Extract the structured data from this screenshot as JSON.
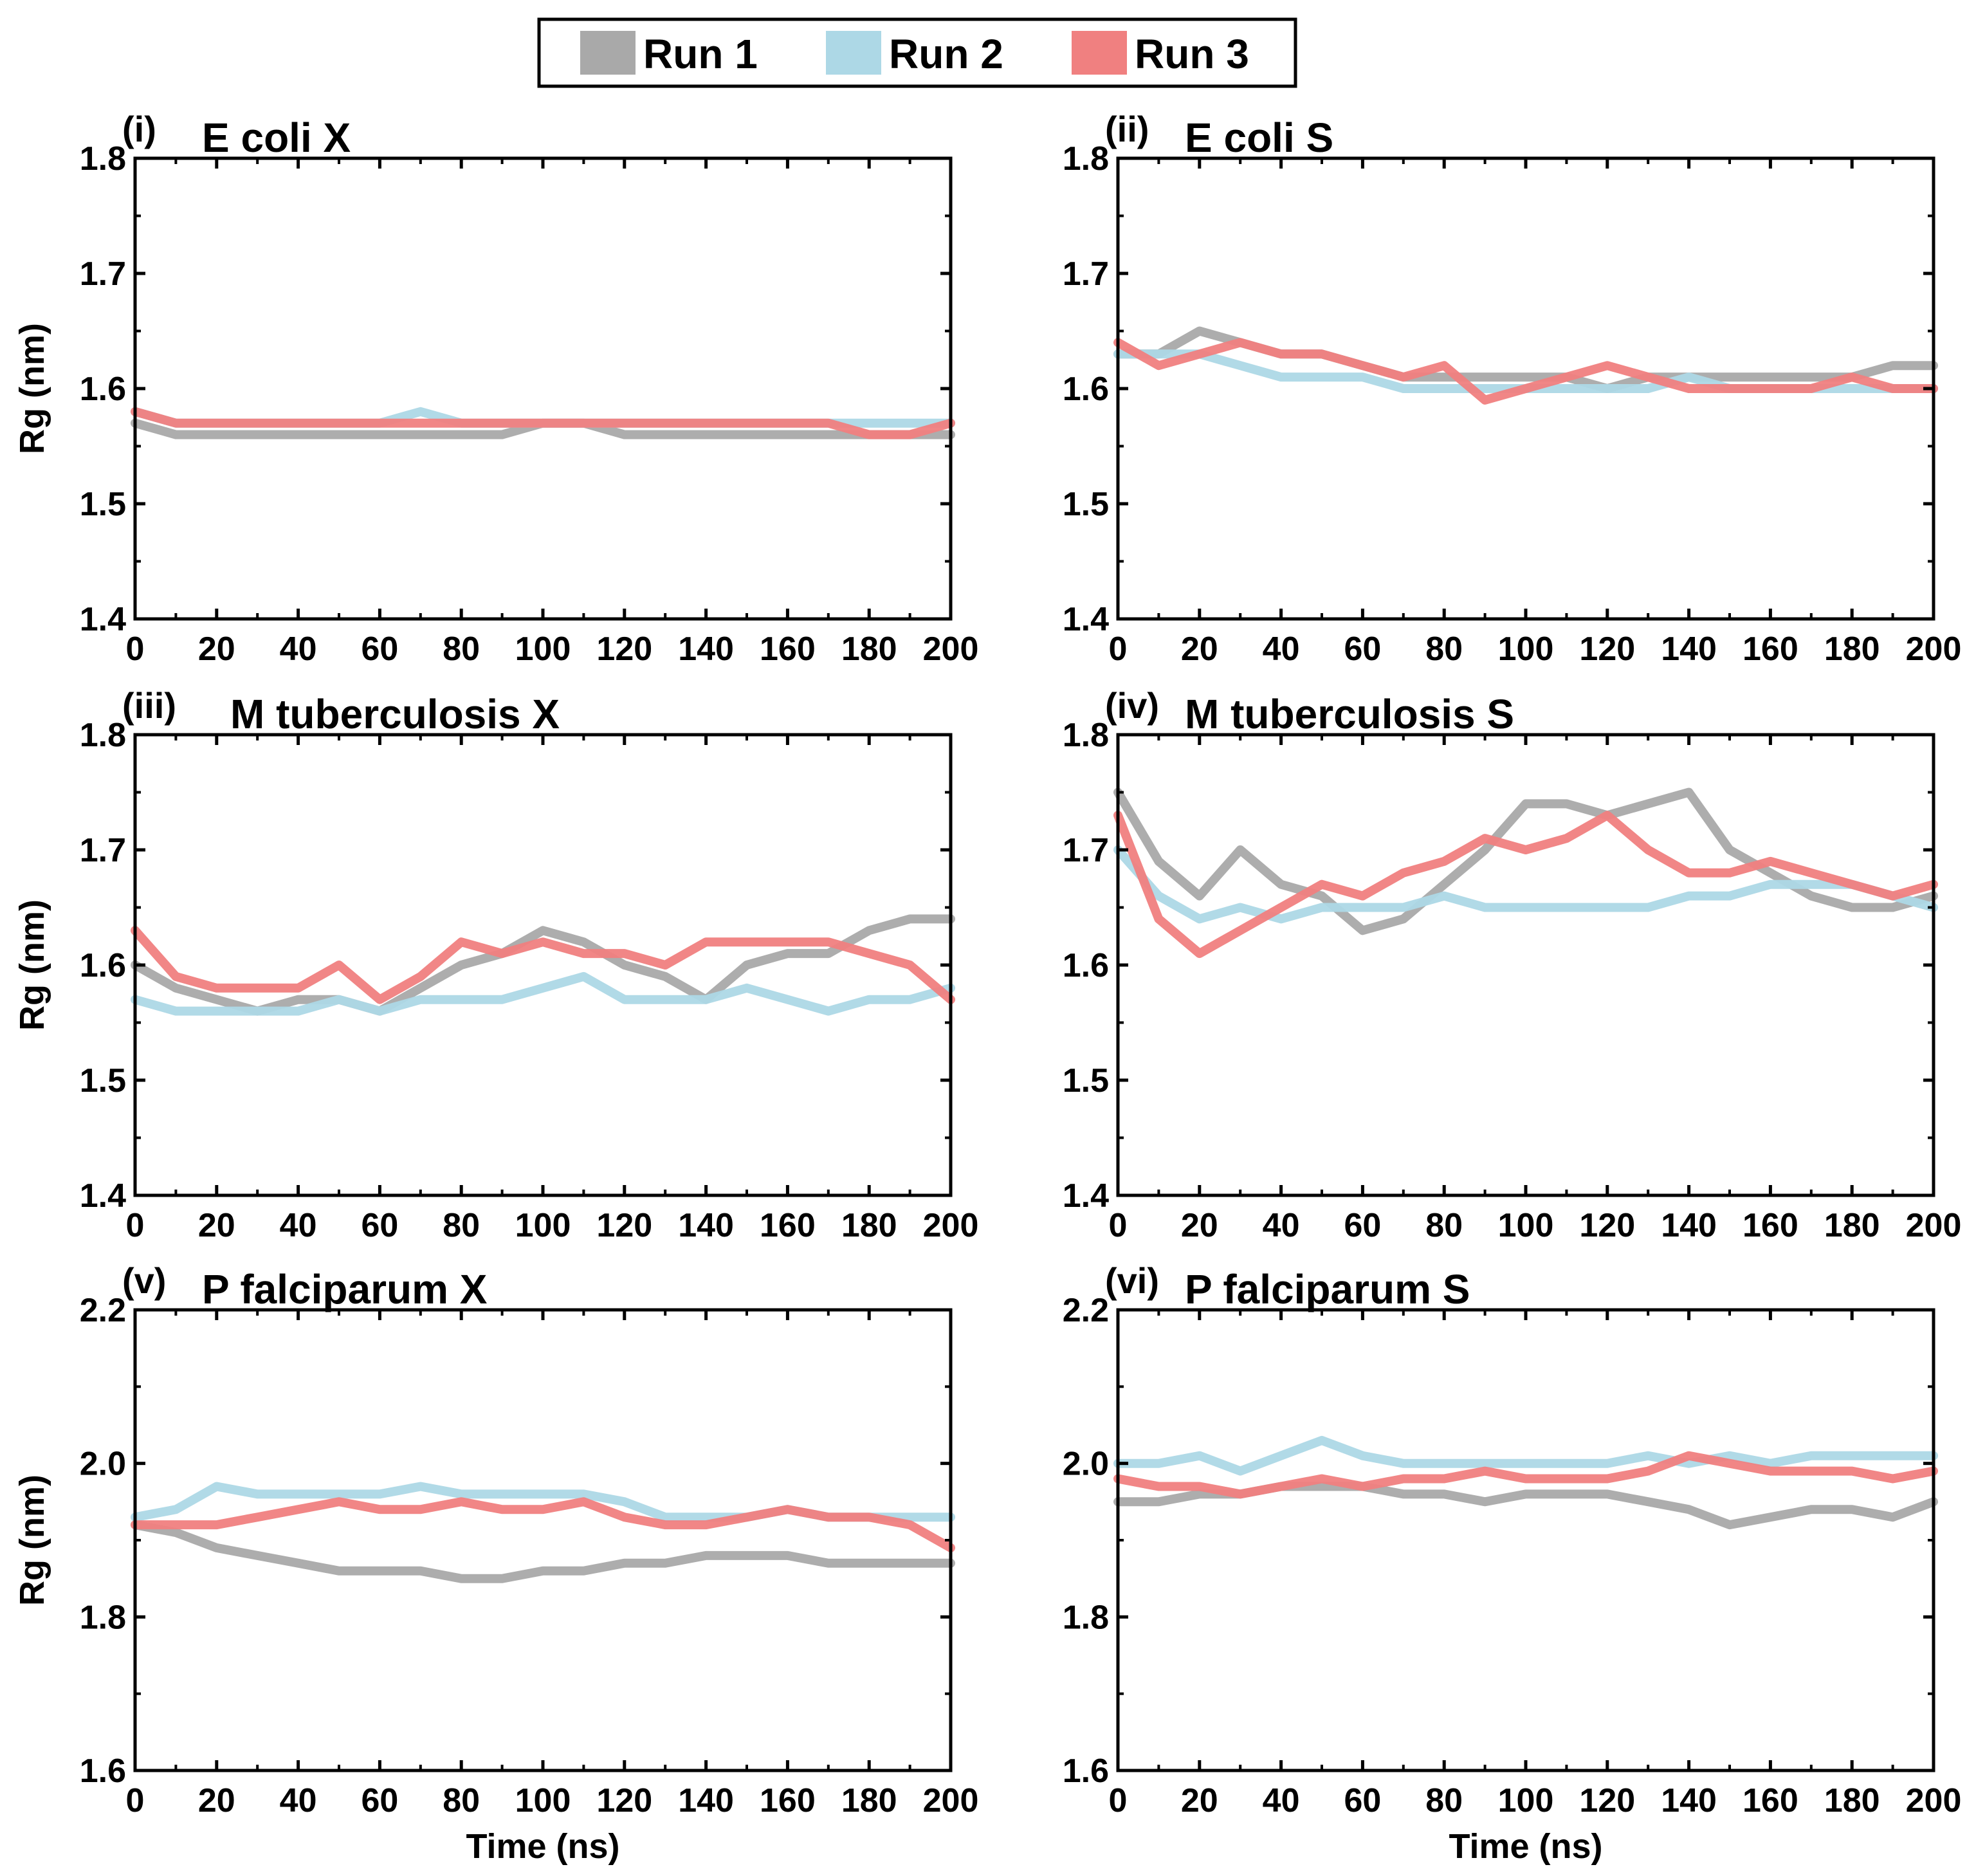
{
  "legend": [
    {
      "name": "Run 1",
      "color": "#a9a9a9"
    },
    {
      "name": "Run 2",
      "color": "#add8e6"
    },
    {
      "name": "Run 3",
      "color": "#f08080"
    }
  ],
  "chart_data": [
    {
      "type": "line",
      "panel_label": "(i)",
      "title": "E coli X",
      "xlabel": "",
      "ylabel": "Rg (nm)",
      "xlim": [
        0,
        200
      ],
      "ylim": [
        1.4,
        1.8
      ],
      "xticks": [
        0,
        20,
        40,
        60,
        80,
        100,
        120,
        140,
        160,
        180,
        200
      ],
      "yticks": [
        1.4,
        1.5,
        1.6,
        1.7,
        1.8
      ],
      "yticks_label": [
        "1.4",
        "1.5",
        "1.6",
        "1.7",
        "1.8"
      ],
      "x": [
        0,
        10,
        20,
        30,
        40,
        50,
        60,
        70,
        80,
        90,
        100,
        110,
        120,
        130,
        140,
        150,
        160,
        170,
        180,
        190,
        200
      ],
      "series": [
        {
          "name": "Run 1",
          "values": [
            1.57,
            1.56,
            1.56,
            1.56,
            1.56,
            1.56,
            1.56,
            1.56,
            1.56,
            1.56,
            1.57,
            1.57,
            1.56,
            1.56,
            1.56,
            1.56,
            1.56,
            1.56,
            1.56,
            1.56,
            1.56
          ]
        },
        {
          "name": "Run 2",
          "values": [
            1.58,
            1.57,
            1.57,
            1.57,
            1.57,
            1.57,
            1.57,
            1.58,
            1.57,
            1.57,
            1.57,
            1.57,
            1.57,
            1.57,
            1.57,
            1.57,
            1.57,
            1.57,
            1.57,
            1.57,
            1.57
          ]
        },
        {
          "name": "Run 3",
          "values": [
            1.58,
            1.57,
            1.57,
            1.57,
            1.57,
            1.57,
            1.57,
            1.57,
            1.57,
            1.57,
            1.57,
            1.57,
            1.57,
            1.57,
            1.57,
            1.57,
            1.57,
            1.57,
            1.56,
            1.56,
            1.57
          ]
        }
      ]
    },
    {
      "type": "line",
      "panel_label": "(ii)",
      "title": "E coli S",
      "xlabel": "",
      "ylabel": "",
      "xlim": [
        0,
        200
      ],
      "ylim": [
        1.4,
        1.8
      ],
      "xticks": [
        0,
        20,
        40,
        60,
        80,
        100,
        120,
        140,
        160,
        180,
        200
      ],
      "yticks": [
        1.4,
        1.5,
        1.6,
        1.7,
        1.8
      ],
      "yticks_label": [
        "1.4",
        "1.5",
        "1.6",
        "1.7",
        "1.8"
      ],
      "x": [
        0,
        10,
        20,
        30,
        40,
        50,
        60,
        70,
        80,
        90,
        100,
        110,
        120,
        130,
        140,
        150,
        160,
        170,
        180,
        190,
        200
      ],
      "series": [
        {
          "name": "Run 1",
          "values": [
            1.63,
            1.63,
            1.65,
            1.64,
            1.63,
            1.63,
            1.62,
            1.61,
            1.61,
            1.61,
            1.61,
            1.61,
            1.6,
            1.61,
            1.61,
            1.61,
            1.61,
            1.61,
            1.61,
            1.62,
            1.62
          ]
        },
        {
          "name": "Run 2",
          "values": [
            1.63,
            1.63,
            1.63,
            1.62,
            1.61,
            1.61,
            1.61,
            1.6,
            1.6,
            1.6,
            1.6,
            1.6,
            1.6,
            1.6,
            1.61,
            1.6,
            1.6,
            1.6,
            1.6,
            1.6,
            1.6
          ]
        },
        {
          "name": "Run 3",
          "values": [
            1.64,
            1.62,
            1.63,
            1.64,
            1.63,
            1.63,
            1.62,
            1.61,
            1.62,
            1.59,
            1.6,
            1.61,
            1.62,
            1.61,
            1.6,
            1.6,
            1.6,
            1.6,
            1.61,
            1.6,
            1.6
          ]
        }
      ]
    },
    {
      "type": "line",
      "panel_label": "(iii)",
      "title": "M tuberculosis X",
      "xlabel": "",
      "ylabel": "Rg (nm)",
      "xlim": [
        0,
        200
      ],
      "ylim": [
        1.4,
        1.8
      ],
      "xticks": [
        0,
        20,
        40,
        60,
        80,
        100,
        120,
        140,
        160,
        180,
        200
      ],
      "yticks": [
        1.4,
        1.5,
        1.6,
        1.7,
        1.8
      ],
      "yticks_label": [
        "1.4",
        "1.5",
        "1.6",
        "1.7",
        "1.8"
      ],
      "x": [
        0,
        10,
        20,
        30,
        40,
        50,
        60,
        70,
        80,
        90,
        100,
        110,
        120,
        130,
        140,
        150,
        160,
        170,
        180,
        190,
        200
      ],
      "series": [
        {
          "name": "Run 1",
          "values": [
            1.6,
            1.58,
            1.57,
            1.56,
            1.57,
            1.57,
            1.56,
            1.58,
            1.6,
            1.61,
            1.63,
            1.62,
            1.6,
            1.59,
            1.57,
            1.6,
            1.61,
            1.61,
            1.63,
            1.64,
            1.64
          ]
        },
        {
          "name": "Run 2",
          "values": [
            1.57,
            1.56,
            1.56,
            1.56,
            1.56,
            1.57,
            1.56,
            1.57,
            1.57,
            1.57,
            1.58,
            1.59,
            1.57,
            1.57,
            1.57,
            1.58,
            1.57,
            1.56,
            1.57,
            1.57,
            1.58
          ]
        },
        {
          "name": "Run 3",
          "values": [
            1.63,
            1.59,
            1.58,
            1.58,
            1.58,
            1.6,
            1.57,
            1.59,
            1.62,
            1.61,
            1.62,
            1.61,
            1.61,
            1.6,
            1.62,
            1.62,
            1.62,
            1.62,
            1.61,
            1.6,
            1.57
          ]
        }
      ]
    },
    {
      "type": "line",
      "panel_label": "(iv)",
      "title": "M tuberculosis S",
      "xlabel": "",
      "ylabel": "",
      "xlim": [
        0,
        200
      ],
      "ylim": [
        1.4,
        1.8
      ],
      "xticks": [
        0,
        20,
        40,
        60,
        80,
        100,
        120,
        140,
        160,
        180,
        200
      ],
      "yticks": [
        1.4,
        1.5,
        1.6,
        1.7,
        1.8
      ],
      "yticks_label": [
        "1.4",
        "1.5",
        "1.6",
        "1.7",
        "1.8"
      ],
      "x": [
        0,
        10,
        20,
        30,
        40,
        50,
        60,
        70,
        80,
        90,
        100,
        110,
        120,
        130,
        140,
        150,
        160,
        170,
        180,
        190,
        200
      ],
      "series": [
        {
          "name": "Run 1",
          "values": [
            1.75,
            1.69,
            1.66,
            1.7,
            1.67,
            1.66,
            1.63,
            1.64,
            1.67,
            1.7,
            1.74,
            1.74,
            1.73,
            1.74,
            1.75,
            1.7,
            1.68,
            1.66,
            1.65,
            1.65,
            1.66
          ]
        },
        {
          "name": "Run 2",
          "values": [
            1.7,
            1.66,
            1.64,
            1.65,
            1.64,
            1.65,
            1.65,
            1.65,
            1.66,
            1.65,
            1.65,
            1.65,
            1.65,
            1.65,
            1.66,
            1.66,
            1.67,
            1.67,
            1.67,
            1.66,
            1.65
          ]
        },
        {
          "name": "Run 3",
          "values": [
            1.73,
            1.64,
            1.61,
            1.63,
            1.65,
            1.67,
            1.66,
            1.68,
            1.69,
            1.71,
            1.7,
            1.71,
            1.73,
            1.7,
            1.68,
            1.68,
            1.69,
            1.68,
            1.67,
            1.66,
            1.67
          ]
        }
      ]
    },
    {
      "type": "line",
      "panel_label": "(v)",
      "title": "P falciparum X",
      "xlabel": "Time (ns)",
      "ylabel": "Rg (nm)",
      "xlim": [
        0,
        200
      ],
      "ylim": [
        1.6,
        2.2
      ],
      "xticks": [
        0,
        20,
        40,
        60,
        80,
        100,
        120,
        140,
        160,
        180,
        200
      ],
      "yticks": [
        1.6,
        1.8,
        2.0,
        2.2
      ],
      "yticks_label": [
        "1.6",
        "1.8",
        "2.0",
        "2.2"
      ],
      "x": [
        0,
        10,
        20,
        30,
        40,
        50,
        60,
        70,
        80,
        90,
        100,
        110,
        120,
        130,
        140,
        150,
        160,
        170,
        180,
        190,
        200
      ],
      "series": [
        {
          "name": "Run 1",
          "values": [
            1.92,
            1.91,
            1.89,
            1.88,
            1.87,
            1.86,
            1.86,
            1.86,
            1.85,
            1.85,
            1.86,
            1.86,
            1.87,
            1.87,
            1.88,
            1.88,
            1.88,
            1.87,
            1.87,
            1.87,
            1.87
          ]
        },
        {
          "name": "Run 2",
          "values": [
            1.93,
            1.94,
            1.97,
            1.96,
            1.96,
            1.96,
            1.96,
            1.97,
            1.96,
            1.96,
            1.96,
            1.96,
            1.95,
            1.93,
            1.93,
            1.93,
            1.94,
            1.93,
            1.93,
            1.93,
            1.93
          ]
        },
        {
          "name": "Run 3",
          "values": [
            1.92,
            1.92,
            1.92,
            1.93,
            1.94,
            1.95,
            1.94,
            1.94,
            1.95,
            1.94,
            1.94,
            1.95,
            1.93,
            1.92,
            1.92,
            1.93,
            1.94,
            1.93,
            1.93,
            1.92,
            1.89
          ]
        }
      ]
    },
    {
      "type": "line",
      "panel_label": "(vi)",
      "title": "P falciparum S",
      "xlabel": "Time (ns)",
      "ylabel": "",
      "xlim": [
        0,
        200
      ],
      "ylim": [
        1.6,
        2.2
      ],
      "xticks": [
        0,
        20,
        40,
        60,
        80,
        100,
        120,
        140,
        160,
        180,
        200
      ],
      "yticks": [
        1.6,
        1.8,
        2.0,
        2.2
      ],
      "yticks_label": [
        "1.6",
        "1.8",
        "2.0",
        "2.2"
      ],
      "x": [
        0,
        10,
        20,
        30,
        40,
        50,
        60,
        70,
        80,
        90,
        100,
        110,
        120,
        130,
        140,
        150,
        160,
        170,
        180,
        190,
        200
      ],
      "series": [
        {
          "name": "Run 1",
          "values": [
            1.95,
            1.95,
            1.96,
            1.96,
            1.97,
            1.97,
            1.97,
            1.96,
            1.96,
            1.95,
            1.96,
            1.96,
            1.96,
            1.95,
            1.94,
            1.92,
            1.93,
            1.94,
            1.94,
            1.93,
            1.95
          ]
        },
        {
          "name": "Run 2",
          "values": [
            2.0,
            2.0,
            2.01,
            1.99,
            2.01,
            2.03,
            2.01,
            2.0,
            2.0,
            2.0,
            2.0,
            2.0,
            2.0,
            2.01,
            2.0,
            2.01,
            2.0,
            2.01,
            2.01,
            2.01,
            2.01
          ]
        },
        {
          "name": "Run 3",
          "values": [
            1.98,
            1.97,
            1.97,
            1.96,
            1.97,
            1.98,
            1.97,
            1.98,
            1.98,
            1.99,
            1.98,
            1.98,
            1.98,
            1.99,
            2.01,
            2.0,
            1.99,
            1.99,
            1.99,
            1.98,
            1.99
          ]
        }
      ]
    }
  ]
}
